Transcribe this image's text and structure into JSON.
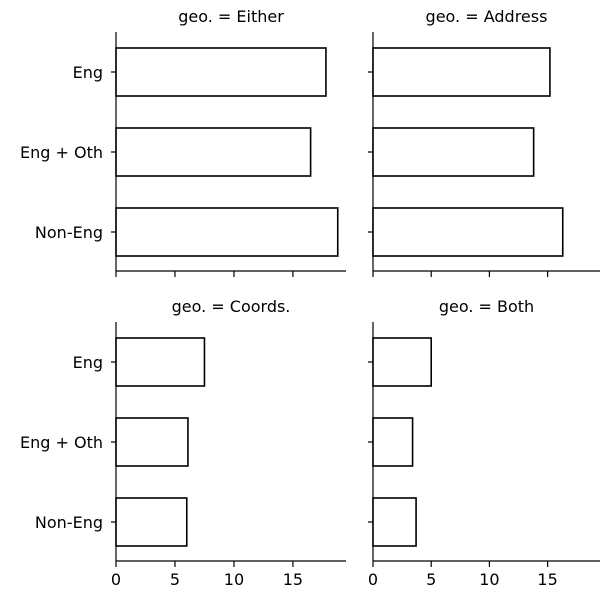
{
  "chart_data": [
    {
      "type": "bar",
      "orientation": "horizontal",
      "title": "geo. = Either",
      "categories": [
        "Eng",
        "Eng + Oth",
        "Non-Eng"
      ],
      "values": [
        17.8,
        16.5,
        18.8
      ],
      "xlim": [
        0,
        19.5
      ],
      "xticks": [
        0,
        5,
        10,
        15
      ],
      "xtick_labels": [
        "",
        "",
        "",
        ""
      ],
      "show_category_labels": true,
      "bar_fill": "#ffffff",
      "bar_edge": "#000000"
    },
    {
      "type": "bar",
      "orientation": "horizontal",
      "title": "geo. = Address",
      "categories": [
        "Eng",
        "Eng + Oth",
        "Non-Eng"
      ],
      "values": [
        15.2,
        13.8,
        16.3
      ],
      "xlim": [
        0,
        19.5
      ],
      "xticks": [
        0,
        5,
        10,
        15
      ],
      "xtick_labels": [
        "",
        "",
        "",
        ""
      ],
      "show_category_labels": false,
      "bar_fill": "#ffffff",
      "bar_edge": "#000000"
    },
    {
      "type": "bar",
      "orientation": "horizontal",
      "title": "geo. = Coords.",
      "categories": [
        "Eng",
        "Eng + Oth",
        "Non-Eng"
      ],
      "values": [
        7.5,
        6.1,
        6.0
      ],
      "xlim": [
        0,
        19.5
      ],
      "xticks": [
        0,
        5,
        10,
        15
      ],
      "xtick_labels": [
        "0",
        "5",
        "10",
        "15"
      ],
      "show_category_labels": true,
      "bar_fill": "#ffffff",
      "bar_edge": "#000000"
    },
    {
      "type": "bar",
      "orientation": "horizontal",
      "title": "geo. = Both",
      "categories": [
        "Eng",
        "Eng + Oth",
        "Non-Eng"
      ],
      "values": [
        5.0,
        3.4,
        3.7
      ],
      "xlim": [
        0,
        19.5
      ],
      "xticks": [
        0,
        5,
        10,
        15
      ],
      "xtick_labels": [
        "0",
        "5",
        "10",
        "15"
      ],
      "show_category_labels": false,
      "bar_fill": "#ffffff",
      "bar_edge": "#000000"
    }
  ]
}
